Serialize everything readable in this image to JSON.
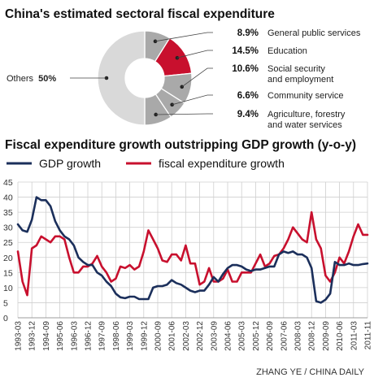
{
  "credit": "ZHANG YE / CHINA DAILY",
  "chart_data": [
    {
      "type": "pie",
      "title": "China's estimated sectoral fiscal expenditure",
      "slices": [
        {
          "label": "General public services",
          "value": 8.9,
          "value_label": "8.9%",
          "color": "#a9a9a9"
        },
        {
          "label": "Education",
          "value": 14.5,
          "value_label": "14.5%",
          "color": "#c8102e"
        },
        {
          "label": "Social security and employment",
          "lines": [
            "Social security",
            "and employment"
          ],
          "value": 10.6,
          "value_label": "10.6%",
          "color": "#a9a9a9"
        },
        {
          "label": "Community service",
          "value": 6.6,
          "value_label": "6.6%",
          "color": "#a9a9a9"
        },
        {
          "label": "Agriculture, forestry and water services",
          "lines": [
            "Agriculture, forestry",
            "and water services"
          ],
          "value": 9.4,
          "value_label": "9.4%",
          "color": "#a9a9a9"
        },
        {
          "label": "Others",
          "value": 50,
          "value_label": "50%",
          "color": "#d9d9d9"
        }
      ]
    },
    {
      "type": "line",
      "title": "Fiscal expenditure growth outstripping GDP growth (y-o-y)",
      "ylim": [
        0,
        45
      ],
      "yticks": [
        0,
        5,
        10,
        15,
        20,
        25,
        30,
        35,
        40,
        45
      ],
      "grid": true,
      "legend_position": "top",
      "categories": [
        "1993-03",
        "1993-12",
        "1994-09",
        "1995-06",
        "1996-03",
        "1996-12",
        "1997-09",
        "1998-06",
        "1999-03",
        "1999-12",
        "2000-09",
        "2001-06",
        "2002-03",
        "2002-12",
        "2003-09",
        "2004-06",
        "2005-03",
        "2005-12",
        "2006-09",
        "2007-06",
        "2008-03",
        "2008-12",
        "2009-09",
        "2010-06",
        "2011-03",
        "2011-11"
      ],
      "x": [
        0,
        1,
        2,
        3,
        4,
        5,
        6,
        7,
        8,
        9,
        10,
        11,
        12,
        13,
        14,
        15,
        16,
        17,
        18,
        19,
        20,
        21,
        22,
        23,
        24,
        25,
        26,
        27,
        28,
        29,
        30,
        31,
        32,
        33,
        34,
        35,
        36,
        37,
        38,
        39,
        40,
        41,
        42,
        43,
        44,
        45,
        46,
        47,
        48,
        49,
        50,
        51,
        52,
        53,
        54,
        55,
        56,
        57,
        58,
        59,
        60,
        61,
        62,
        63,
        64,
        65,
        66,
        67,
        68,
        69,
        70,
        71,
        72,
        73,
        74,
        75
      ],
      "series": [
        {
          "name": "GDP growth",
          "color": "#1b2f5b",
          "values": [
            31,
            29,
            28.5,
            32.5,
            40,
            39,
            39,
            37,
            32,
            29,
            27,
            26,
            24,
            20,
            18.5,
            17.5,
            17.5,
            15,
            14,
            12,
            10.5,
            8,
            6.8,
            6.5,
            7,
            7,
            6.2,
            6.2,
            6.2,
            10,
            10.5,
            10.5,
            11,
            12.5,
            11.5,
            11,
            10,
            9,
            8.5,
            9,
            9,
            11,
            13.5,
            12,
            14.5,
            16.5,
            17.5,
            17.5,
            17,
            16,
            15.5,
            16,
            16,
            16.5,
            17,
            17,
            21,
            22,
            21.5,
            22,
            21,
            21,
            20,
            16.5,
            5.5,
            5,
            6,
            8,
            18.5,
            17.5,
            17.5,
            18,
            17.5,
            17.5,
            17.8,
            18
          ]
        },
        {
          "name": "fiscal expenditure growth",
          "color": "#c8102e",
          "values": [
            22,
            12,
            7.5,
            23,
            24,
            27,
            26,
            25,
            27,
            27,
            26,
            20,
            15,
            15,
            17,
            17,
            18,
            20.5,
            17,
            15,
            12,
            13,
            17,
            16.5,
            17.5,
            16,
            17,
            22,
            29,
            26,
            23,
            19,
            18.5,
            21,
            21,
            19,
            24,
            18,
            18,
            11,
            12,
            16.5,
            12,
            12,
            13,
            16,
            12,
            12,
            15,
            15,
            15,
            18,
            21,
            17,
            18,
            20.5,
            21,
            23,
            26,
            30,
            28,
            26,
            25,
            35,
            26,
            23,
            14,
            12,
            15,
            20,
            18,
            22,
            27,
            31,
            27.5,
            27.5
          ]
        }
      ]
    }
  ]
}
